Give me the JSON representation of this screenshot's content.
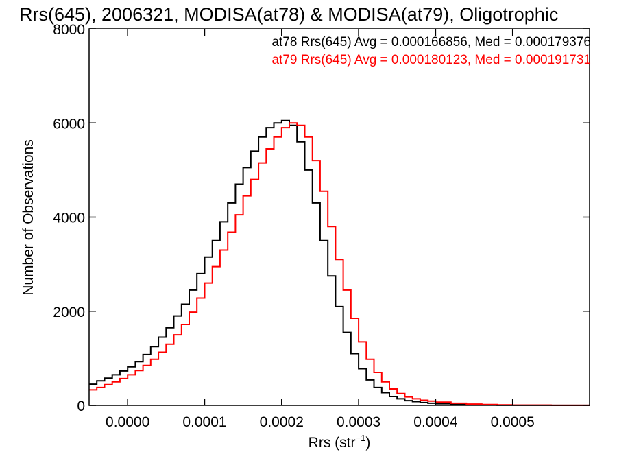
{
  "chart_data": {
    "type": "line",
    "title": "Rrs(645), 2006321, MODISA(at78) & MODISA(at79), Oligotrophic",
    "xlabel": "Rrs (str",
    "xlabel_sup": "−1",
    "xlabel_close": ")",
    "ylabel": "Number of Observations",
    "xlim": [
      -5e-05,
      0.0006
    ],
    "ylim": [
      0,
      8000
    ],
    "x_ticks": [
      0.0,
      0.0001,
      0.0002,
      0.0003,
      0.0004,
      0.0005
    ],
    "x_tick_labels": [
      "0.0000",
      "0.0001",
      "0.0002",
      "0.0003",
      "0.0004",
      "0.0005"
    ],
    "y_ticks": [
      0,
      2000,
      4000,
      6000,
      8000
    ],
    "y_tick_labels": [
      "0",
      "2000",
      "4000",
      "6000",
      "8000"
    ],
    "grid": false,
    "legend_position": "top-right",
    "series": [
      {
        "name": "at78",
        "color": "#000000",
        "annotation": "at78 Rrs(645) Avg = 0.000166856, Med = 0.000179376",
        "x": [
          -5e-05,
          -4e-05,
          -3e-05,
          -2e-05,
          -1e-05,
          0.0,
          1e-05,
          2e-05,
          3e-05,
          4e-05,
          5e-05,
          6e-05,
          7e-05,
          8e-05,
          9e-05,
          0.0001,
          0.00011,
          0.00012,
          0.00013,
          0.00014,
          0.00015,
          0.00016,
          0.00017,
          0.00018,
          0.00019,
          0.0002,
          0.00021,
          0.00022,
          0.00023,
          0.00024,
          0.00025,
          0.00026,
          0.00027,
          0.00028,
          0.00029,
          0.0003,
          0.00031,
          0.00032,
          0.00033,
          0.00034,
          0.00035,
          0.00036,
          0.00037,
          0.00038,
          0.00039,
          0.0004,
          0.00042,
          0.00044,
          0.00046,
          0.00048,
          0.0005,
          0.00055,
          0.0006
        ],
        "y": [
          450,
          520,
          580,
          650,
          730,
          820,
          930,
          1080,
          1250,
          1450,
          1650,
          1900,
          2150,
          2450,
          2800,
          3150,
          3500,
          3900,
          4300,
          4700,
          5050,
          5400,
          5700,
          5900,
          6000,
          6050,
          5950,
          5600,
          5000,
          4300,
          3500,
          2750,
          2100,
          1550,
          1100,
          780,
          540,
          380,
          270,
          190,
          140,
          100,
          80,
          60,
          45,
          35,
          20,
          12,
          8,
          5,
          3,
          1,
          0
        ]
      },
      {
        "name": "at79",
        "color": "#ff0000",
        "annotation": "at79 Rrs(645) Avg = 0.000180123, Med = 0.000191731",
        "x": [
          -5e-05,
          -4e-05,
          -3e-05,
          -2e-05,
          -1e-05,
          0.0,
          1e-05,
          2e-05,
          3e-05,
          4e-05,
          5e-05,
          6e-05,
          7e-05,
          8e-05,
          9e-05,
          0.0001,
          0.00011,
          0.00012,
          0.00013,
          0.00014,
          0.00015,
          0.00016,
          0.00017,
          0.00018,
          0.00019,
          0.0002,
          0.00021,
          0.00022,
          0.00023,
          0.00024,
          0.00025,
          0.00026,
          0.00027,
          0.00028,
          0.00029,
          0.0003,
          0.00031,
          0.00032,
          0.00033,
          0.00034,
          0.00035,
          0.00036,
          0.00037,
          0.00038,
          0.00039,
          0.0004,
          0.00042,
          0.00044,
          0.00046,
          0.00048,
          0.0005,
          0.00055,
          0.0006
        ],
        "y": [
          330,
          380,
          440,
          500,
          570,
          650,
          740,
          850,
          980,
          1130,
          1300,
          1500,
          1720,
          1980,
          2280,
          2600,
          2950,
          3300,
          3680,
          4050,
          4450,
          4800,
          5150,
          5450,
          5700,
          5900,
          6000,
          5950,
          5700,
          5200,
          4550,
          3800,
          3100,
          2450,
          1850,
          1350,
          980,
          700,
          500,
          350,
          250,
          180,
          140,
          110,
          90,
          70,
          45,
          28,
          18,
          10,
          6,
          2,
          0
        ]
      }
    ]
  }
}
